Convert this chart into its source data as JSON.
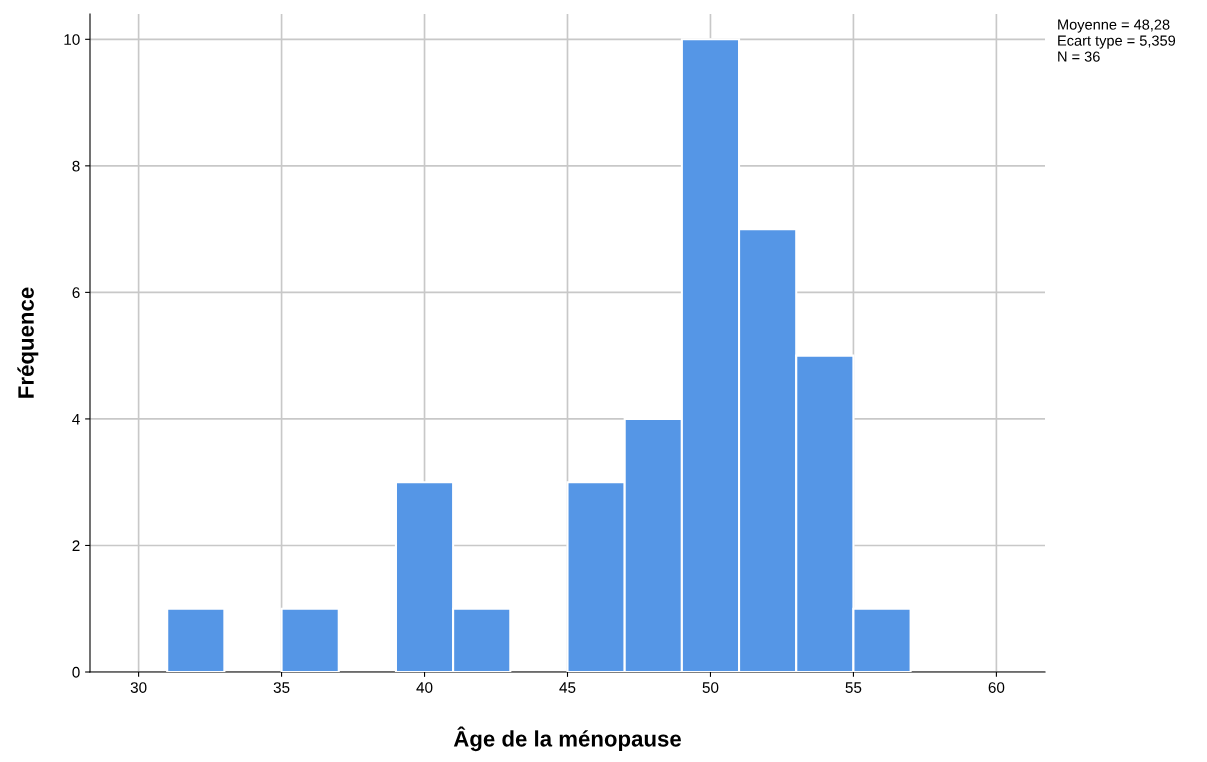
{
  "chart_data": {
    "type": "histogram",
    "xlabel": "Âge de la ménopause",
    "ylabel": "Fréquence",
    "bins": [
      31,
      33,
      35,
      37,
      39,
      41,
      43,
      45,
      47,
      49,
      51,
      53,
      55,
      57
    ],
    "values": [
      1,
      0,
      1,
      0,
      3,
      1,
      0,
      3,
      4,
      10,
      7,
      5,
      1
    ],
    "color": "#5596e6",
    "xlim": [
      28.3,
      61.7
    ],
    "xticks": [
      30,
      35,
      40,
      45,
      50,
      55,
      60
    ],
    "ylim": [
      0,
      10.4
    ],
    "yticks": [
      0,
      2,
      4,
      6,
      8,
      10
    ],
    "grid": true,
    "annotations": [
      "Moyenne = 48,28",
      "Ecart type = 5,359",
      "N = 36"
    ]
  }
}
